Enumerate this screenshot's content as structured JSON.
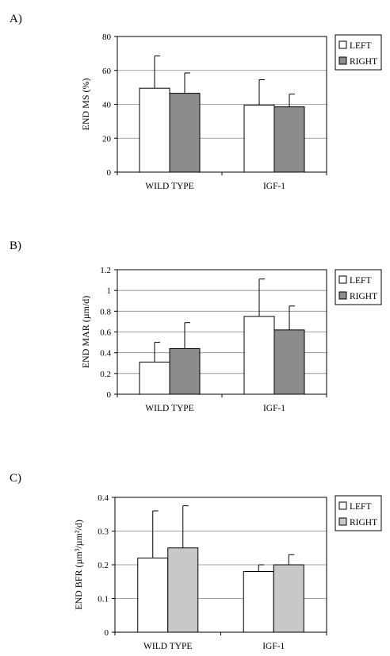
{
  "chart_data": [
    {
      "panel": "A)",
      "type": "bar",
      "ylabel": "END MS (%)",
      "ylim": [
        0,
        80
      ],
      "yticks": [
        "0",
        "20",
        "40",
        "60",
        "80"
      ],
      "categories": [
        "WILD TYPE",
        "IGF-1"
      ],
      "legend": "right",
      "grid": true,
      "series": [
        {
          "name": "LEFT",
          "color": "#ffffff",
          "values": [
            49.5,
            39.5
          ],
          "errors": [
            19,
            15
          ]
        },
        {
          "name": "RIGHT",
          "color": "#8c8c8c",
          "values": [
            46.5,
            38.5
          ],
          "errors": [
            12,
            7.5
          ]
        }
      ]
    },
    {
      "panel": "B)",
      "type": "bar",
      "ylabel": "END MAR (µm/d)",
      "ylim": [
        0,
        1.2
      ],
      "yticks": [
        "0",
        "0.2",
        "0.4",
        "0.6",
        "0.8",
        "1",
        "1.2"
      ],
      "categories": [
        "WILD TYPE",
        "IGF-1"
      ],
      "legend": "right",
      "grid": true,
      "series": [
        {
          "name": "LEFT",
          "color": "#ffffff",
          "values": [
            0.31,
            0.75
          ],
          "errors": [
            0.19,
            0.36
          ]
        },
        {
          "name": "RIGHT",
          "color": "#8c8c8c",
          "values": [
            0.44,
            0.62
          ],
          "errors": [
            0.25,
            0.23
          ]
        }
      ]
    },
    {
      "panel": "C)",
      "type": "bar",
      "ylabel": "END BFR (µm³/µm²/d)",
      "ylim": [
        0,
        0.4
      ],
      "yticks": [
        "0",
        "0.1",
        "0.2",
        "0.3",
        "0.4"
      ],
      "categories": [
        "WILD TYPE",
        "IGF-1"
      ],
      "legend": "right",
      "grid": true,
      "series": [
        {
          "name": "LEFT",
          "color": "#ffffff",
          "values": [
            0.22,
            0.18
          ],
          "errors": [
            0.14,
            0.02
          ]
        },
        {
          "name": "RIGHT",
          "color": "#c8c8c8",
          "values": [
            0.25,
            0.2
          ],
          "errors": [
            0.125,
            0.03
          ]
        }
      ]
    }
  ]
}
